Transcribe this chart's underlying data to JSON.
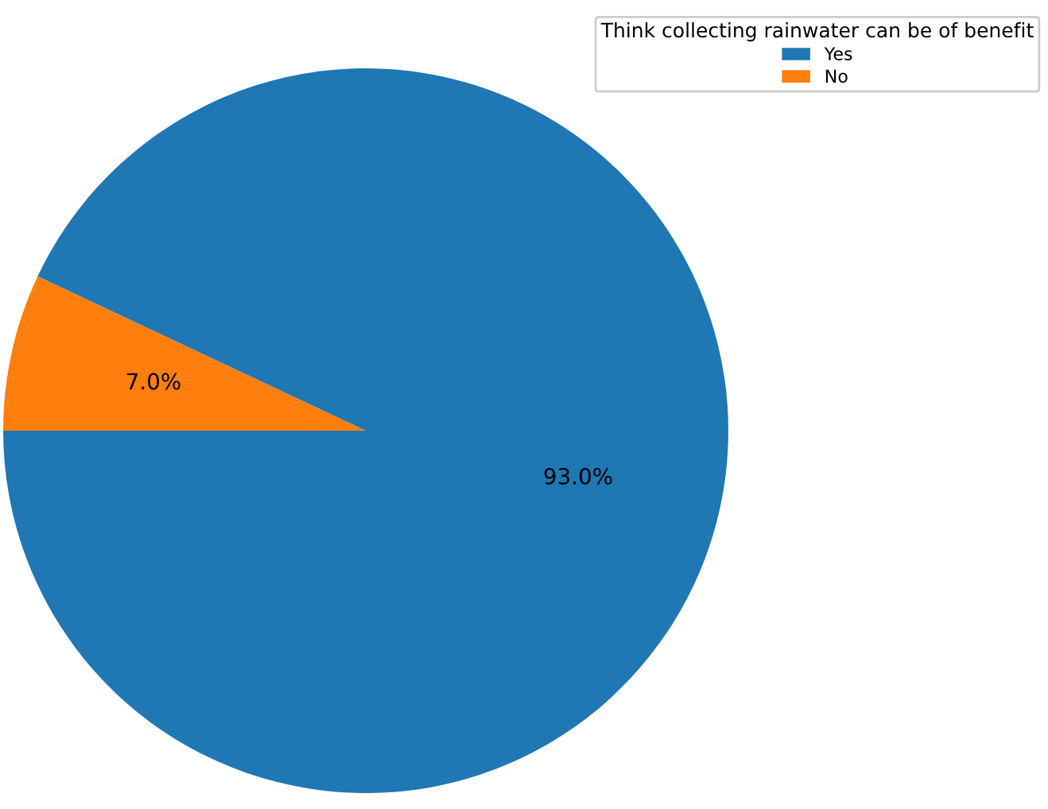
{
  "chart_data": {
    "type": "pie",
    "legend_title": "Think collecting rainwater can be of benefit",
    "legend": "top right",
    "categories": [
      "Yes",
      "No"
    ],
    "values": [
      93.0,
      7.0
    ],
    "colors": [
      "#1f77b4",
      "#ff7f0e"
    ],
    "value_labels": [
      "93.0%",
      "7.0%"
    ]
  }
}
